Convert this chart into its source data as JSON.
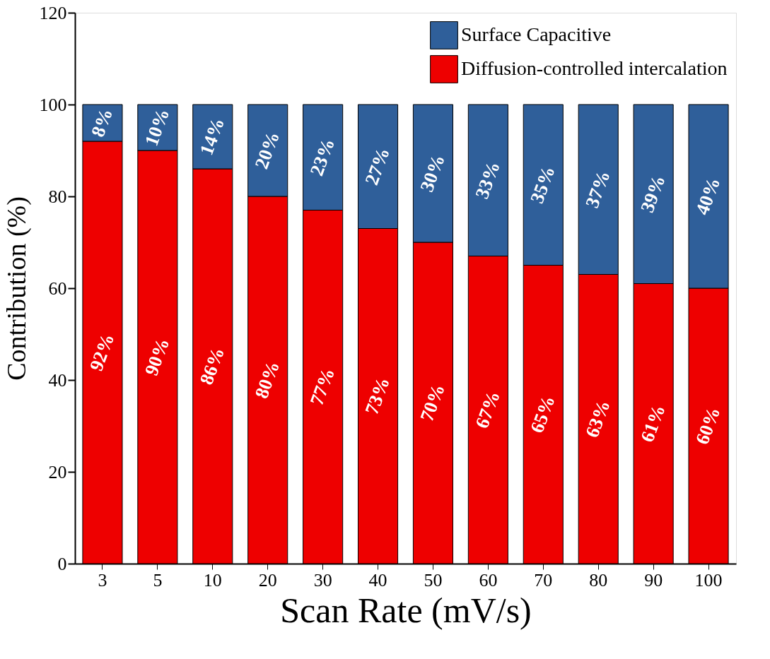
{
  "chart_data": {
    "type": "bar",
    "stacked": true,
    "xlabel": "Scan Rate (mV/s)",
    "ylabel": "Contribution (%)",
    "categories": [
      "3",
      "5",
      "10",
      "20",
      "30",
      "40",
      "50",
      "60",
      "70",
      "80",
      "90",
      "100"
    ],
    "series": [
      {
        "name": "Diffusion-controlled intercalation",
        "color": "#ee0000",
        "values": [
          92,
          90,
          86,
          80,
          77,
          73,
          70,
          67,
          65,
          63,
          61,
          60
        ],
        "value_labels": [
          "92%",
          "90%",
          "86%",
          "80%",
          "77%",
          "73%",
          "70%",
          "67%",
          "65%",
          "63%",
          "61%",
          "60%"
        ]
      },
      {
        "name": "Surface Capacitive",
        "color": "#2f5f9a",
        "values": [
          8,
          10,
          14,
          20,
          23,
          27,
          30,
          33,
          35,
          37,
          39,
          40
        ],
        "value_labels": [
          "8%",
          "10%",
          "14%",
          "20%",
          "23%",
          "27%",
          "30%",
          "33%",
          "35%",
          "37%",
          "39%",
          "40%"
        ]
      }
    ],
    "ylim": [
      0,
      120
    ],
    "yticks": [
      0,
      20,
      40,
      60,
      80,
      100,
      120
    ],
    "grid": false,
    "legend": "top right"
  }
}
